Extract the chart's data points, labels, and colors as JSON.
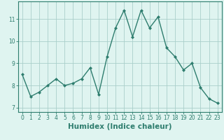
{
  "title": "",
  "xlabel": "Humidex (Indice chaleur)",
  "ylabel": "",
  "x": [
    0,
    1,
    2,
    3,
    4,
    5,
    6,
    7,
    8,
    9,
    10,
    11,
    12,
    13,
    14,
    15,
    16,
    17,
    18,
    19,
    20,
    21,
    22,
    23
  ],
  "y": [
    8.5,
    7.5,
    7.7,
    8.0,
    8.3,
    8.0,
    8.1,
    8.3,
    8.8,
    7.6,
    9.3,
    10.6,
    11.4,
    10.2,
    11.4,
    10.6,
    11.1,
    9.7,
    9.3,
    8.7,
    9.0,
    7.9,
    7.4,
    7.2
  ],
  "line_color": "#2e7d6e",
  "marker": "D",
  "marker_size": 2.0,
  "line_width": 1.0,
  "bg_color": "#dff4f0",
  "grid_color": "#aacfca",
  "xlim": [
    -0.5,
    23.5
  ],
  "ylim": [
    6.8,
    11.8
  ],
  "yticks": [
    7,
    8,
    9,
    10,
    11
  ],
  "xticks": [
    0,
    1,
    2,
    3,
    4,
    5,
    6,
    7,
    8,
    9,
    10,
    11,
    12,
    13,
    14,
    15,
    16,
    17,
    18,
    19,
    20,
    21,
    22,
    23
  ],
  "tick_label_fontsize": 5.5,
  "xlabel_fontsize": 7.5,
  "axis_color": "#2e7d6e",
  "tick_color": "#2e7d6e"
}
